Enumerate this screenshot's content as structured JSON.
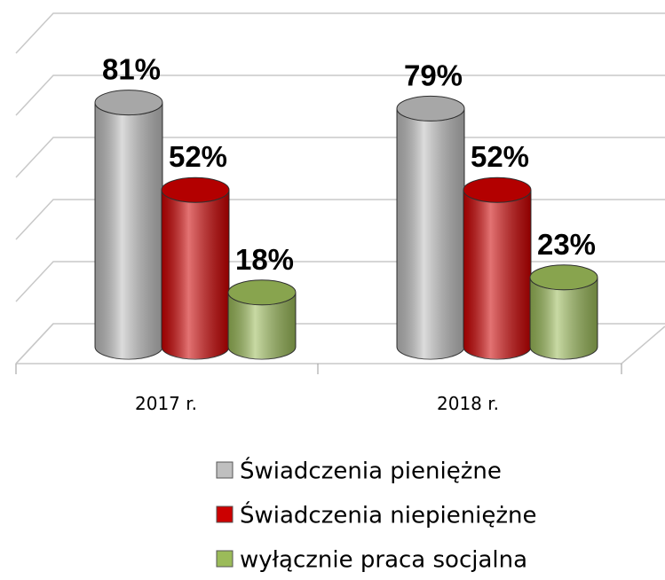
{
  "chart_data": {
    "type": "bar3d",
    "categories": [
      "2017 r.",
      "2018 r."
    ],
    "series": [
      {
        "name": "Świadczenia pieniężne",
        "color": "#bfbfbf",
        "values": [
          81,
          79
        ],
        "value_labels": [
          "81%",
          "79%"
        ]
      },
      {
        "name": "Świadczenia niepieniężne",
        "color": "#cc0000",
        "values": [
          52,
          52
        ],
        "value_labels": [
          "52%",
          "52%"
        ]
      },
      {
        "name": "wyłącznie praca socjalna",
        "color": "#9bbb59",
        "values": [
          18,
          23
        ],
        "value_labels": [
          "18%",
          "23%"
        ]
      }
    ],
    "ylim": [
      0,
      100
    ],
    "yticks": [
      0,
      20,
      40,
      60,
      80,
      100
    ],
    "grid": true,
    "legend": "bottom"
  }
}
